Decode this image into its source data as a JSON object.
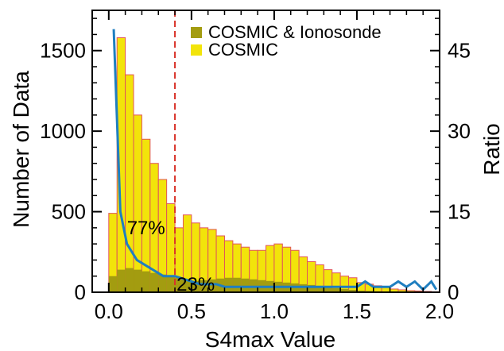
{
  "chart_data": {
    "type": "bar",
    "xlabel": "S4max Value",
    "ylabel": "Number of Data",
    "y2label": "Ratio",
    "xlim": [
      -0.1,
      2.0
    ],
    "ylim": [
      0,
      1750
    ],
    "y2lim": [
      0,
      52.5
    ],
    "xticks": [
      "0.0",
      "0.5",
      "1.0",
      "1.5",
      "2.0"
    ],
    "yticks": [
      "0",
      "500",
      "1000",
      "1500"
    ],
    "y2ticks": [
      "0",
      "15",
      "30",
      "45"
    ],
    "bin_width": 0.05,
    "bins_x": [
      0.0,
      0.05,
      0.1,
      0.15,
      0.2,
      0.25,
      0.3,
      0.35,
      0.4,
      0.45,
      0.5,
      0.55,
      0.6,
      0.65,
      0.7,
      0.75,
      0.8,
      0.85,
      0.9,
      0.95,
      1.0,
      1.05,
      1.1,
      1.15,
      1.2,
      1.25,
      1.3,
      1.35,
      1.4,
      1.45,
      1.5,
      1.55,
      1.6,
      1.65,
      1.7,
      1.75,
      1.8,
      1.85,
      1.9,
      1.95
    ],
    "series": [
      {
        "name": "COSMIC",
        "color": "#f2e40a",
        "values": [
          490,
          1580,
          1350,
          1100,
          950,
          800,
          700,
          550,
          400,
          480,
          430,
          400,
          390,
          350,
          320,
          300,
          280,
          260,
          260,
          290,
          300,
          280,
          260,
          220,
          190,
          170,
          140,
          120,
          100,
          90,
          60,
          50,
          40,
          30,
          20,
          15,
          10,
          8,
          5,
          3
        ]
      },
      {
        "name": "COSMIC & Ionosonde",
        "color": "#a39c10",
        "values": [
          100,
          140,
          150,
          140,
          130,
          120,
          110,
          100,
          90,
          80,
          70,
          75,
          80,
          85,
          90,
          90,
          85,
          80,
          75,
          70,
          65,
          60,
          55,
          50,
          45,
          35,
          30,
          25,
          20,
          15,
          10,
          8,
          6,
          4,
          3,
          2,
          1,
          1,
          0,
          0
        ]
      }
    ],
    "ratio_line": {
      "color": "#1f7fc0",
      "x": [
        0.03,
        0.07,
        0.11,
        0.17,
        0.25,
        0.33,
        0.4,
        0.45,
        0.5,
        0.55,
        0.6,
        0.65,
        0.7,
        0.8,
        0.9,
        1.0,
        1.1,
        1.2,
        1.3,
        1.4,
        1.5,
        1.55,
        1.6,
        1.65,
        1.7,
        1.75,
        1.8,
        1.85,
        1.9,
        1.95,
        1.98
      ],
      "y": [
        49,
        15,
        9,
        6,
        4.5,
        3,
        3,
        2.5,
        2,
        1.5,
        1.5,
        1.5,
        1,
        1,
        1,
        1,
        1,
        1,
        1,
        1,
        1,
        2,
        1,
        1,
        1,
        2,
        1,
        2,
        0.5,
        2,
        0.5
      ]
    },
    "threshold_line": {
      "x": 0.4,
      "color": "#d9342b"
    },
    "annotations": [
      {
        "text": "77%",
        "x": 0.11,
        "y": 360
      },
      {
        "text": "23%",
        "x": 0.41,
        "y": 10
      }
    ],
    "legend_position": "top-right",
    "grid": false
  }
}
